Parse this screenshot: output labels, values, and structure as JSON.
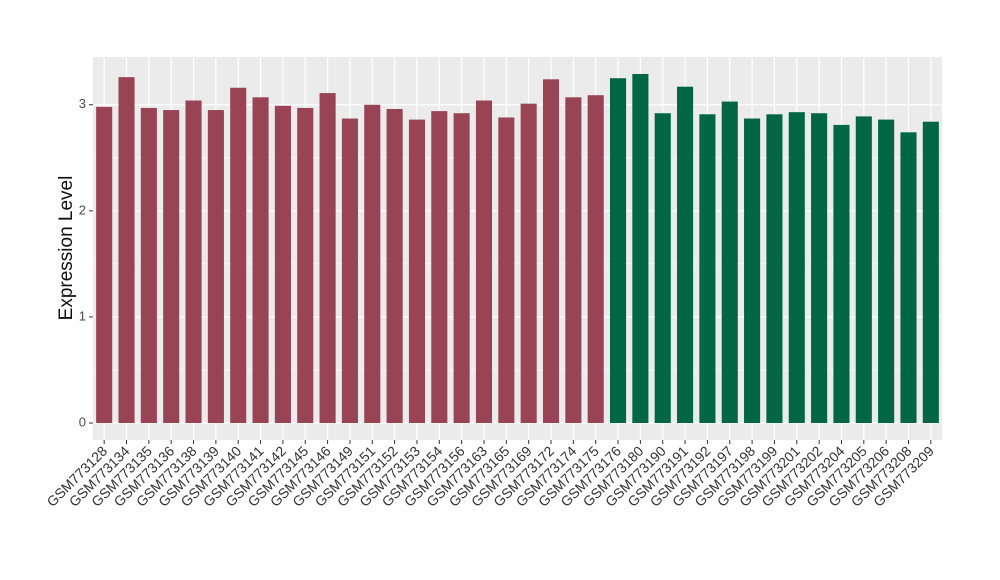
{
  "chart_data": {
    "type": "bar",
    "y_label": "Expression Level",
    "categories": [
      "GSM773128",
      "GSM773134",
      "GSM773135",
      "GSM773136",
      "GSM773138",
      "GSM773139",
      "GSM773140",
      "GSM773141",
      "GSM773142",
      "GSM773145",
      "GSM773146",
      "GSM773149",
      "GSM773151",
      "GSM773152",
      "GSM773153",
      "GSM773154",
      "GSM773156",
      "GSM773163",
      "GSM773165",
      "GSM773169",
      "GSM773172",
      "GSM773174",
      "GSM773175",
      "GSM773176",
      "GSM773180",
      "GSM773190",
      "GSM773191",
      "GSM773192",
      "GSM773197",
      "GSM773198",
      "GSM773199",
      "GSM773201",
      "GSM773202",
      "GSM773204",
      "GSM773205",
      "GSM773206",
      "GSM773208",
      "GSM773209"
    ],
    "values": [
      2.98,
      3.26,
      2.97,
      2.95,
      3.04,
      2.95,
      3.16,
      3.07,
      2.99,
      2.97,
      3.11,
      2.87,
      3.0,
      2.96,
      2.86,
      2.94,
      2.92,
      3.04,
      2.88,
      3.01,
      3.24,
      3.07,
      3.09,
      3.25,
      3.29,
      2.92,
      3.17,
      2.91,
      3.03,
      2.87,
      2.91,
      2.93,
      2.92,
      2.81,
      2.89,
      2.86,
      2.74,
      2.84
    ],
    "colors": [
      "#994455",
      "#994455",
      "#994455",
      "#994455",
      "#994455",
      "#994455",
      "#994455",
      "#994455",
      "#994455",
      "#994455",
      "#994455",
      "#994455",
      "#994455",
      "#994455",
      "#994455",
      "#994455",
      "#994455",
      "#994455",
      "#994455",
      "#994455",
      "#994455",
      "#994455",
      "#994455",
      "#006644",
      "#006644",
      "#006644",
      "#006644",
      "#006644",
      "#006644",
      "#006644",
      "#006644",
      "#006644",
      "#006644",
      "#006644",
      "#006644",
      "#006644",
      "#006644",
      "#006644"
    ],
    "ylim": [
      -0.16,
      3.45
    ],
    "yticks": [
      0,
      1,
      2,
      3
    ],
    "grid": true
  }
}
